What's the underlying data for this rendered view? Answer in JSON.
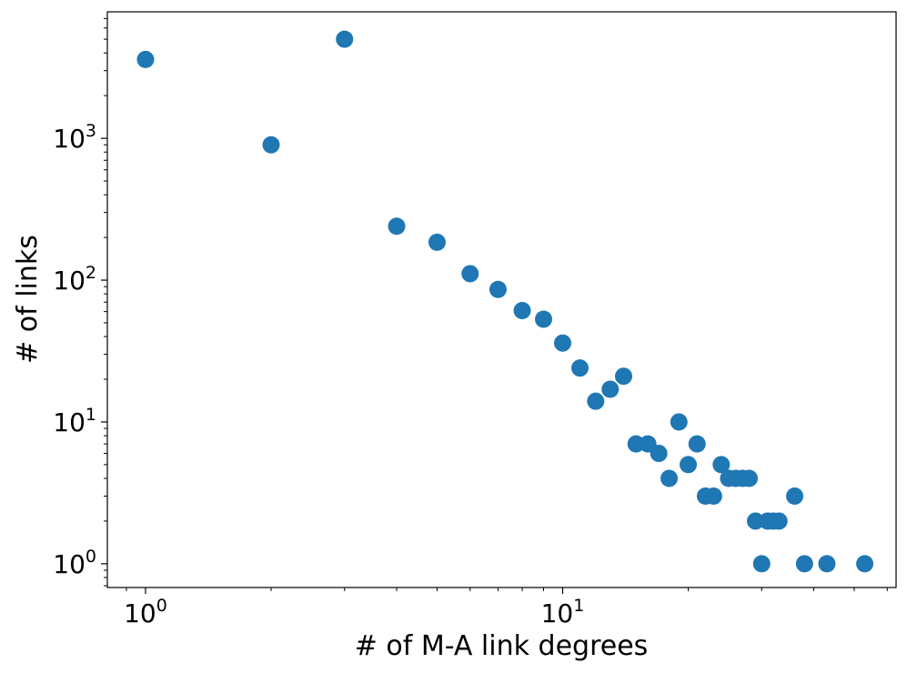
{
  "chart_data": {
    "type": "scatter",
    "xscale": "log",
    "yscale": "log",
    "xlabel": "# of M-A link degrees",
    "ylabel": "# of links",
    "xlim": [
      0.81,
      63
    ],
    "ylim": [
      0.68,
      7800
    ],
    "grid": false,
    "marker_color": "#1f77b4",
    "x_ticks": [
      {
        "value": 1,
        "base": "10",
        "exp": "0"
      },
      {
        "value": 10,
        "base": "10",
        "exp": "1"
      }
    ],
    "y_ticks": [
      {
        "value": 1,
        "base": "10",
        "exp": "0"
      },
      {
        "value": 10,
        "base": "10",
        "exp": "1"
      },
      {
        "value": 100,
        "base": "10",
        "exp": "2"
      },
      {
        "value": 1000,
        "base": "10",
        "exp": "3"
      }
    ],
    "points": [
      [
        1,
        3600
      ],
      [
        2,
        900
      ],
      [
        3,
        5000
      ],
      [
        4,
        240
      ],
      [
        5,
        185
      ],
      [
        6,
        111
      ],
      [
        7,
        86
      ],
      [
        8,
        61
      ],
      [
        9,
        53
      ],
      [
        10,
        36
      ],
      [
        11,
        24
      ],
      [
        12,
        14
      ],
      [
        13,
        17
      ],
      [
        14,
        21
      ],
      [
        15,
        7
      ],
      [
        16,
        7
      ],
      [
        17,
        6
      ],
      [
        18,
        4
      ],
      [
        19,
        10
      ],
      [
        20,
        5
      ],
      [
        21,
        7
      ],
      [
        22,
        3
      ],
      [
        23,
        3
      ],
      [
        24,
        5
      ],
      [
        25,
        4
      ],
      [
        26,
        4
      ],
      [
        27,
        4
      ],
      [
        28,
        4
      ],
      [
        29,
        2
      ],
      [
        30,
        1
      ],
      [
        31,
        2
      ],
      [
        32,
        2
      ],
      [
        33,
        2
      ],
      [
        36,
        3
      ],
      [
        38,
        1
      ],
      [
        43,
        1
      ],
      [
        53,
        1
      ]
    ]
  }
}
